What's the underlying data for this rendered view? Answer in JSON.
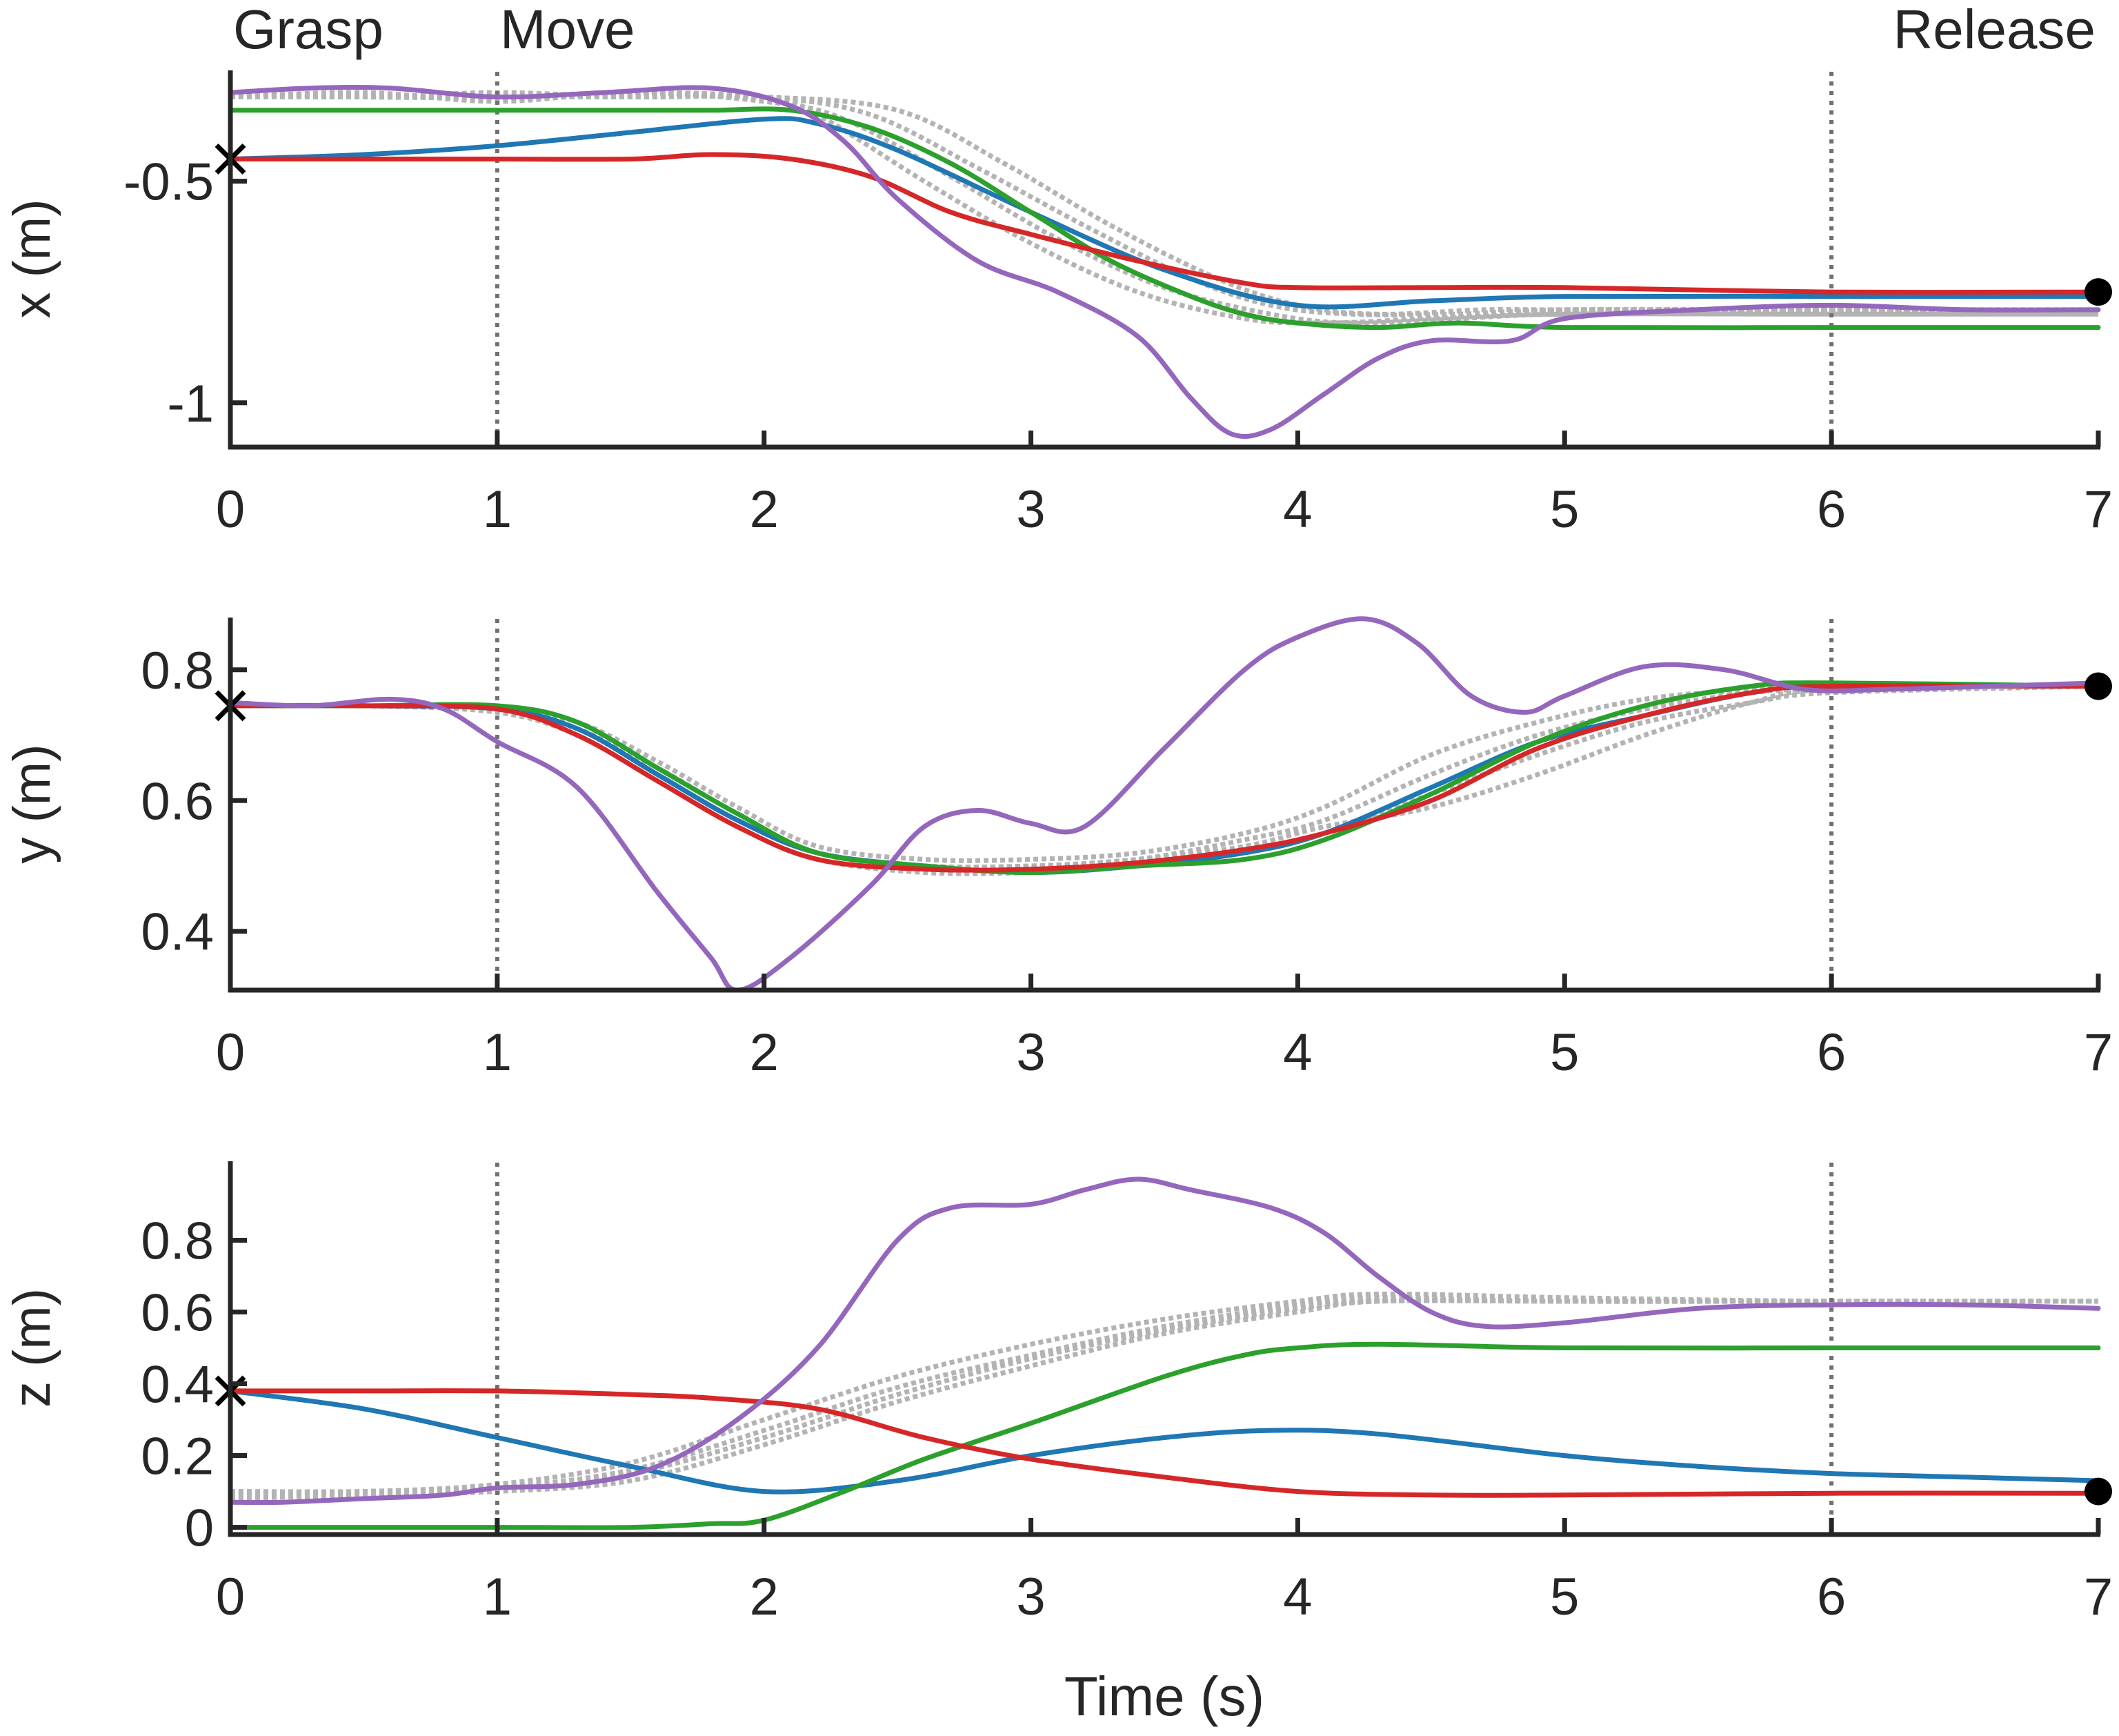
{
  "colors": {
    "blue": "#1f77b4",
    "green": "#2ca02c",
    "red": "#d62728",
    "purple": "#9467bd",
    "demo": "#b3b3b3",
    "event_line": "#707070",
    "axis": "#262626",
    "marker": "#000000"
  },
  "chart_data": [
    {
      "type": "line",
      "id": "x",
      "ylabel": "x (m)",
      "xlabel": "",
      "xlim": [
        0,
        7
      ],
      "ylim": [
        -1.1,
        -0.25
      ],
      "xticks": [
        0,
        1,
        2,
        3,
        4,
        5,
        6,
        7
      ],
      "xtick_labels": [
        "0",
        "1",
        "2",
        "3",
        "4",
        "5",
        "6",
        "7"
      ],
      "yticks": [
        -1,
        -0.5
      ],
      "ytick_labels": [
        "-1",
        "-0.5"
      ],
      "event_lines": [
        1,
        6
      ],
      "events": [
        {
          "x": 0,
          "label": "Grasp"
        },
        {
          "x": 1,
          "label": "Move"
        },
        {
          "x": 6,
          "label": "Release"
        }
      ],
      "start_marker": {
        "x": 0,
        "y": -0.45
      },
      "end_marker": {
        "x": 7,
        "y": -0.75
      },
      "demos": [
        {
          "x": [
            0,
            0.5,
            1,
            1.5,
            2,
            2.4,
            2.8,
            3.2,
            3.6,
            3.9,
            4.2,
            4.6,
            5,
            6,
            7
          ],
          "y": [
            -0.3,
            -0.31,
            -0.31,
            -0.3,
            -0.31,
            -0.35,
            -0.47,
            -0.6,
            -0.72,
            -0.78,
            -0.8,
            -0.8,
            -0.79,
            -0.79,
            -0.79
          ]
        },
        {
          "x": [
            0,
            0.5,
            1,
            1.5,
            2,
            2.3,
            2.7,
            3.1,
            3.5,
            3.9,
            4.2,
            4.6,
            5,
            6,
            7
          ],
          "y": [
            -0.31,
            -0.3,
            -0.32,
            -0.3,
            -0.32,
            -0.36,
            -0.49,
            -0.63,
            -0.74,
            -0.8,
            -0.82,
            -0.81,
            -0.8,
            -0.8,
            -0.8
          ]
        },
        {
          "x": [
            0,
            0.5,
            1,
            1.5,
            2,
            2.5,
            2.9,
            3.3,
            3.7,
            4,
            4.3,
            4.7,
            5,
            6,
            7
          ],
          "y": [
            -0.3,
            -0.31,
            -0.3,
            -0.31,
            -0.31,
            -0.34,
            -0.46,
            -0.6,
            -0.72,
            -0.78,
            -0.8,
            -0.79,
            -0.79,
            -0.79,
            -0.79
          ]
        },
        {
          "x": [
            0,
            0.5,
            1,
            1.5,
            2,
            2.2,
            2.6,
            3,
            3.4,
            3.8,
            4.1,
            4.5,
            5,
            6,
            7
          ],
          "y": [
            -0.31,
            -0.31,
            -0.31,
            -0.31,
            -0.31,
            -0.35,
            -0.5,
            -0.64,
            -0.75,
            -0.81,
            -0.82,
            -0.81,
            -0.8,
            -0.8,
            -0.8
          ]
        }
      ],
      "series": [
        {
          "name": "blue",
          "color_key": "blue",
          "x": [
            0,
            0.5,
            1,
            1.5,
            2,
            2.2,
            2.5,
            3,
            3.5,
            4,
            4.5,
            5,
            6,
            7
          ],
          "y": [
            -0.45,
            -0.44,
            -0.42,
            -0.39,
            -0.36,
            -0.37,
            -0.43,
            -0.57,
            -0.7,
            -0.78,
            -0.77,
            -0.76,
            -0.76,
            -0.76
          ]
        },
        {
          "name": "green",
          "color_key": "green",
          "x": [
            0,
            0.5,
            1,
            1.5,
            1.8,
            2.1,
            2.4,
            2.7,
            3,
            3.3,
            3.6,
            3.8,
            4,
            4.3,
            4.6,
            5,
            6,
            7
          ],
          "y": [
            -0.34,
            -0.34,
            -0.34,
            -0.34,
            -0.34,
            -0.34,
            -0.38,
            -0.46,
            -0.57,
            -0.68,
            -0.76,
            -0.8,
            -0.82,
            -0.83,
            -0.82,
            -0.83,
            -0.83,
            -0.83
          ]
        },
        {
          "name": "red",
          "color_key": "red",
          "x": [
            0,
            0.5,
            1,
            1.5,
            1.8,
            2.1,
            2.4,
            2.7,
            3,
            3.4,
            3.8,
            4,
            4.5,
            5,
            6,
            7
          ],
          "y": [
            -0.45,
            -0.45,
            -0.45,
            -0.45,
            -0.44,
            -0.45,
            -0.49,
            -0.57,
            -0.62,
            -0.68,
            -0.73,
            -0.74,
            -0.74,
            -0.74,
            -0.75,
            -0.75
          ]
        },
        {
          "name": "purple",
          "color_key": "purple",
          "x": [
            0,
            0.3,
            0.6,
            1,
            1.4,
            1.8,
            2.1,
            2.3,
            2.5,
            2.8,
            3.1,
            3.4,
            3.6,
            3.75,
            3.9,
            4.1,
            4.3,
            4.5,
            4.8,
            5,
            5.5,
            6,
            6.5,
            7
          ],
          "y": [
            -0.3,
            -0.29,
            -0.29,
            -0.31,
            -0.3,
            -0.29,
            -0.33,
            -0.41,
            -0.54,
            -0.68,
            -0.75,
            -0.85,
            -0.99,
            -1.07,
            -1.06,
            -0.98,
            -0.9,
            -0.86,
            -0.86,
            -0.81,
            -0.79,
            -0.78,
            -0.79,
            -0.79
          ]
        }
      ]
    },
    {
      "type": "line",
      "id": "y",
      "ylabel": "y (m)",
      "xlabel": "",
      "xlim": [
        0,
        7
      ],
      "ylim": [
        0.31,
        0.88
      ],
      "xticks": [
        0,
        1,
        2,
        3,
        4,
        5,
        6,
        7
      ],
      "xtick_labels": [
        "0",
        "1",
        "2",
        "3",
        "4",
        "5",
        "6",
        "7"
      ],
      "yticks": [
        0.4,
        0.6,
        0.8
      ],
      "ytick_labels": [
        "0.4",
        "0.6",
        "0.8"
      ],
      "event_lines": [
        1,
        6
      ],
      "events": [],
      "start_marker": {
        "x": 0,
        "y": 0.745
      },
      "end_marker": {
        "x": 7,
        "y": 0.775
      },
      "demos": [
        {
          "x": [
            0,
            0.5,
            1,
            1.3,
            1.6,
            1.9,
            2.2,
            2.6,
            3,
            3.4,
            3.8,
            4.1,
            4.5,
            4.9,
            5.3,
            5.7,
            6,
            7
          ],
          "y": [
            0.745,
            0.745,
            0.74,
            0.71,
            0.64,
            0.57,
            0.52,
            0.5,
            0.5,
            0.51,
            0.54,
            0.57,
            0.64,
            0.7,
            0.74,
            0.765,
            0.77,
            0.775
          ]
        },
        {
          "x": [
            0,
            0.5,
            1,
            1.3,
            1.6,
            1.9,
            2.2,
            2.6,
            3,
            3.4,
            3.8,
            4.1,
            4.5,
            4.9,
            5.3,
            5.7,
            6,
            7
          ],
          "y": [
            0.745,
            0.745,
            0.735,
            0.7,
            0.63,
            0.56,
            0.51,
            0.49,
            0.49,
            0.5,
            0.52,
            0.55,
            0.61,
            0.67,
            0.72,
            0.75,
            0.765,
            0.775
          ]
        },
        {
          "x": [
            0,
            0.5,
            1,
            1.3,
            1.6,
            1.9,
            2.2,
            2.6,
            3,
            3.4,
            3.8,
            4.1,
            4.5,
            4.9,
            5.3,
            5.7,
            6,
            7
          ],
          "y": [
            0.745,
            0.745,
            0.74,
            0.72,
            0.66,
            0.59,
            0.53,
            0.51,
            0.51,
            0.52,
            0.55,
            0.59,
            0.67,
            0.72,
            0.755,
            0.77,
            0.775,
            0.775
          ]
        },
        {
          "x": [
            0,
            0.5,
            1,
            1.3,
            1.6,
            1.9,
            2.2,
            2.6,
            3,
            3.4,
            3.8,
            4.1,
            4.5,
            4.9,
            5.3,
            5.7,
            6,
            7
          ],
          "y": [
            0.745,
            0.745,
            0.74,
            0.71,
            0.65,
            0.58,
            0.52,
            0.5,
            0.5,
            0.51,
            0.53,
            0.56,
            0.59,
            0.64,
            0.7,
            0.75,
            0.77,
            0.775
          ]
        }
      ],
      "series": [
        {
          "name": "blue",
          "color_key": "blue",
          "x": [
            0,
            0.5,
            1,
            1.3,
            1.6,
            1.9,
            2.2,
            2.6,
            3,
            3.4,
            3.8,
            4.1,
            4.5,
            4.9,
            5.3,
            5.7,
            6,
            7
          ],
          "y": [
            0.745,
            0.745,
            0.74,
            0.71,
            0.64,
            0.57,
            0.52,
            0.5,
            0.49,
            0.5,
            0.52,
            0.55,
            0.62,
            0.69,
            0.73,
            0.765,
            0.775,
            0.775
          ]
        },
        {
          "name": "green",
          "color_key": "green",
          "x": [
            0,
            0.5,
            1,
            1.3,
            1.6,
            1.9,
            2.2,
            2.6,
            3,
            3.4,
            3.8,
            4.1,
            4.5,
            4.9,
            5.3,
            5.7,
            6,
            7
          ],
          "y": [
            0.745,
            0.745,
            0.745,
            0.72,
            0.65,
            0.58,
            0.52,
            0.5,
            0.49,
            0.5,
            0.51,
            0.54,
            0.61,
            0.69,
            0.745,
            0.775,
            0.78,
            0.775
          ]
        },
        {
          "name": "red",
          "color_key": "red",
          "x": [
            0,
            0.5,
            1,
            1.3,
            1.6,
            1.9,
            2.2,
            2.6,
            3,
            3.4,
            3.8,
            4.1,
            4.5,
            4.9,
            5.3,
            5.7,
            6,
            7
          ],
          "y": [
            0.745,
            0.745,
            0.74,
            0.7,
            0.63,
            0.56,
            0.51,
            0.495,
            0.495,
            0.505,
            0.525,
            0.55,
            0.6,
            0.68,
            0.73,
            0.765,
            0.775,
            0.775
          ]
        },
        {
          "name": "purple",
          "color_key": "purple",
          "x": [
            0,
            0.3,
            0.6,
            0.8,
            1,
            1.3,
            1.6,
            1.8,
            1.9,
            2.1,
            2.4,
            2.6,
            2.8,
            3,
            3.2,
            3.5,
            3.8,
            4,
            4.25,
            4.45,
            4.65,
            4.85,
            5,
            5.3,
            5.6,
            5.9,
            6.2,
            6.6,
            7
          ],
          "y": [
            0.75,
            0.745,
            0.755,
            0.74,
            0.69,
            0.62,
            0.46,
            0.36,
            0.31,
            0.36,
            0.47,
            0.56,
            0.585,
            0.565,
            0.56,
            0.68,
            0.8,
            0.85,
            0.878,
            0.84,
            0.76,
            0.735,
            0.76,
            0.805,
            0.8,
            0.77,
            0.77,
            0.775,
            0.78
          ]
        }
      ]
    },
    {
      "type": "line",
      "id": "z",
      "ylabel": "z (m)",
      "xlabel": "Time (s)",
      "xlim": [
        0,
        7
      ],
      "ylim": [
        -0.02,
        1.02
      ],
      "xticks": [
        0,
        1,
        2,
        3,
        4,
        5,
        6,
        7
      ],
      "xtick_labels": [
        "0",
        "1",
        "2",
        "3",
        "4",
        "5",
        "6",
        "7"
      ],
      "yticks": [
        0,
        0.2,
        0.4,
        0.6,
        0.8
      ],
      "ytick_labels": [
        "0",
        "0.2",
        "0.4",
        "0.6",
        "0.8"
      ],
      "event_lines": [
        1,
        6
      ],
      "events": [],
      "start_marker": {
        "x": 0,
        "y": 0.38
      },
      "end_marker": {
        "x": 7,
        "y": 0.1
      },
      "demos": [
        {
          "x": [
            0,
            0.5,
            1,
            1.5,
            2,
            2.5,
            3,
            3.5,
            4,
            4.3,
            5,
            6,
            7
          ],
          "y": [
            0.1,
            0.1,
            0.11,
            0.16,
            0.27,
            0.39,
            0.48,
            0.56,
            0.62,
            0.64,
            0.63,
            0.63,
            0.63
          ]
        },
        {
          "x": [
            0,
            0.5,
            1,
            1.5,
            2,
            2.5,
            3,
            3.5,
            4,
            4.3,
            5,
            6,
            7
          ],
          "y": [
            0.08,
            0.09,
            0.1,
            0.13,
            0.23,
            0.35,
            0.45,
            0.54,
            0.6,
            0.63,
            0.63,
            0.63,
            0.63
          ]
        },
        {
          "x": [
            0,
            0.5,
            1,
            1.5,
            2,
            2.5,
            3,
            3.5,
            4,
            4.3,
            5,
            6,
            7
          ],
          "y": [
            0.1,
            0.1,
            0.12,
            0.18,
            0.3,
            0.42,
            0.51,
            0.58,
            0.63,
            0.65,
            0.64,
            0.63,
            0.63
          ]
        },
        {
          "x": [
            0,
            0.5,
            1,
            1.5,
            2,
            2.5,
            3,
            3.5,
            4,
            4.3,
            5,
            6,
            7
          ],
          "y": [
            0.09,
            0.1,
            0.11,
            0.15,
            0.25,
            0.37,
            0.47,
            0.55,
            0.61,
            0.63,
            0.63,
            0.63,
            0.63
          ]
        }
      ],
      "series": [
        {
          "name": "blue",
          "color_key": "blue",
          "x": [
            0,
            0.5,
            1,
            1.5,
            2,
            2.5,
            3,
            3.5,
            3.9,
            4.3,
            5,
            5.5,
            6,
            6.5,
            7
          ],
          "y": [
            0.38,
            0.33,
            0.25,
            0.17,
            0.1,
            0.13,
            0.2,
            0.25,
            0.27,
            0.26,
            0.2,
            0.17,
            0.15,
            0.14,
            0.13
          ]
        },
        {
          "name": "green",
          "color_key": "green",
          "x": [
            0,
            0.5,
            1,
            1.5,
            1.8,
            2,
            2.3,
            2.6,
            3,
            3.5,
            3.8,
            4,
            4.3,
            5,
            6,
            7
          ],
          "y": [
            0,
            0,
            0,
            0,
            0.01,
            0.02,
            0.1,
            0.19,
            0.29,
            0.42,
            0.48,
            0.5,
            0.51,
            0.5,
            0.5,
            0.5
          ]
        },
        {
          "name": "red",
          "color_key": "red",
          "x": [
            0,
            0.5,
            1,
            1.5,
            1.8,
            2.2,
            2.6,
            3,
            3.5,
            4,
            4.5,
            5,
            6,
            7
          ],
          "y": [
            0.38,
            0.38,
            0.38,
            0.37,
            0.36,
            0.33,
            0.25,
            0.19,
            0.14,
            0.1,
            0.09,
            0.09,
            0.095,
            0.095
          ]
        },
        {
          "name": "purple",
          "color_key": "purple",
          "x": [
            0,
            0.2,
            0.5,
            0.8,
            1,
            1.3,
            1.6,
            1.9,
            2.2,
            2.5,
            2.7,
            3,
            3.2,
            3.4,
            3.6,
            3.9,
            4.1,
            4.3,
            4.5,
            4.7,
            5,
            5.5,
            6,
            6.5,
            7
          ],
          "y": [
            0.07,
            0.07,
            0.08,
            0.09,
            0.11,
            0.12,
            0.17,
            0.3,
            0.5,
            0.8,
            0.89,
            0.9,
            0.94,
            0.97,
            0.94,
            0.89,
            0.82,
            0.7,
            0.6,
            0.56,
            0.57,
            0.61,
            0.62,
            0.62,
            0.61
          ]
        }
      ]
    }
  ]
}
